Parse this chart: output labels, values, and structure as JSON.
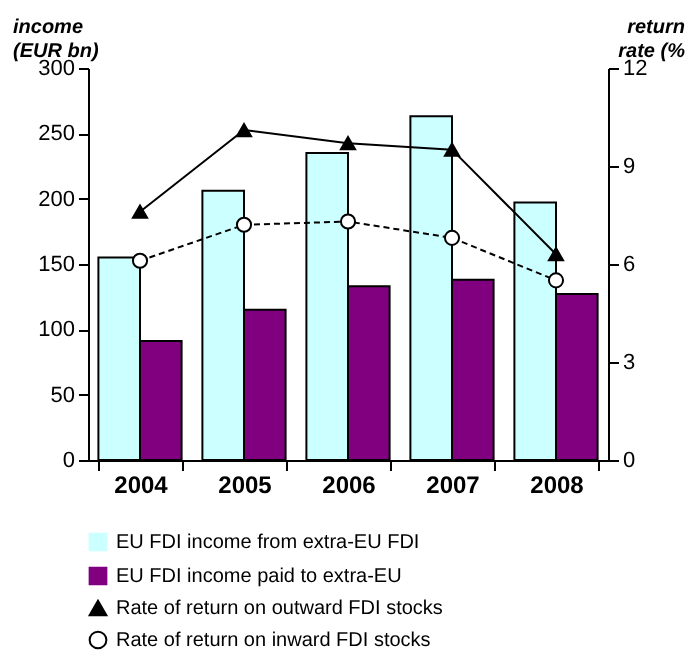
{
  "chart_data": {
    "type": "bar",
    "ylabel": "income\n(EUR bn)",
    "y2label": "return\nrate (%",
    "categories": [
      "2004",
      "2005",
      "2006",
      "2007",
      "2008"
    ],
    "ylim": [
      0,
      300
    ],
    "yticks": [
      0,
      50,
      100,
      150,
      200,
      250,
      300
    ],
    "y2lim": [
      0,
      12
    ],
    "y2ticks": [
      0,
      3,
      6,
      9,
      12
    ],
    "legend": "bottom",
    "series": [
      {
        "name": "EU FDI income from extra-EU FDI",
        "color": "#ccffff",
        "values": [
          155,
          206,
          235,
          263,
          197
        ]
      },
      {
        "name": "EU FDI income paid to extra-EU",
        "color": "#800080",
        "values": [
          91,
          115,
          133,
          138,
          127
        ]
      },
      {
        "name": "Rate of return on outward FDI stocks",
        "type": "line",
        "axis": "y2",
        "color": "#000000",
        "marker": "triangle",
        "line_style": "solid",
        "values": [
          7.6,
          10.1,
          9.7,
          9.5,
          6.3
        ]
      },
      {
        "name": "Rate of return on inward FDI stocks",
        "type": "line",
        "axis": "y2",
        "color": "#000000",
        "marker": "circle",
        "line_style": "dashed",
        "values": [
          6.1,
          7.2,
          7.3,
          6.8,
          5.5
        ]
      }
    ]
  }
}
